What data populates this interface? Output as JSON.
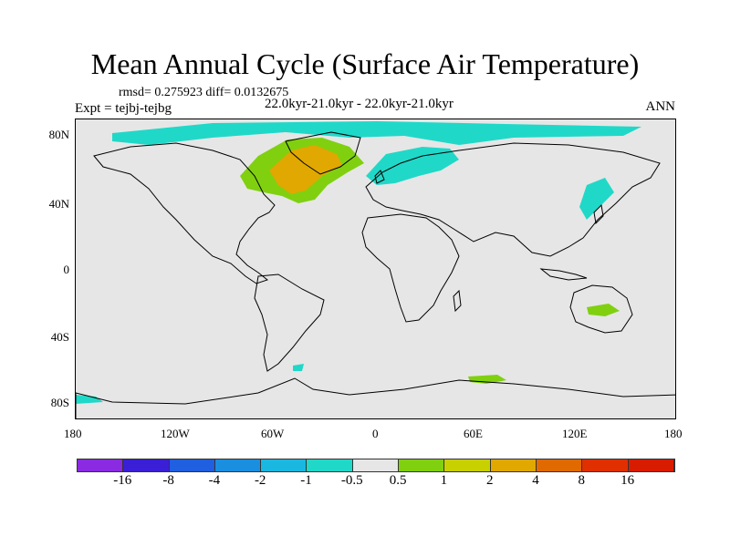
{
  "title": "Mean Annual Cycle (Surface Air Temperature)",
  "stats": "rmsd= 0.275923 diff= 0.0132675",
  "experiment": "Expt = tejbj-tejbg",
  "period": "22.0kyr-21.0kyr - 22.0kyr-21.0kyr",
  "season": "ANN",
  "map": {
    "x_ticks": [
      "180",
      "120W",
      "60W",
      "0",
      "60E",
      "120E",
      "180"
    ],
    "y_ticks": [
      "80N",
      "40N",
      "0",
      "40S",
      "80S"
    ],
    "background_color": "#e6e6e6"
  },
  "colorbar": {
    "labels": [
      "-16",
      "-8",
      "-4",
      "-2",
      "-1",
      "-0.5",
      "0.5",
      "1",
      "2",
      "4",
      "8",
      "16"
    ],
    "colors": [
      "#8a2be2",
      "#3a1fd6",
      "#1f5fe0",
      "#1a8fe0",
      "#1ab8e0",
      "#20d8c8",
      "#e6e6e6",
      "#80d010",
      "#c8d000",
      "#e0a800",
      "#e06a00",
      "#e03000",
      "#d81c00"
    ]
  }
}
